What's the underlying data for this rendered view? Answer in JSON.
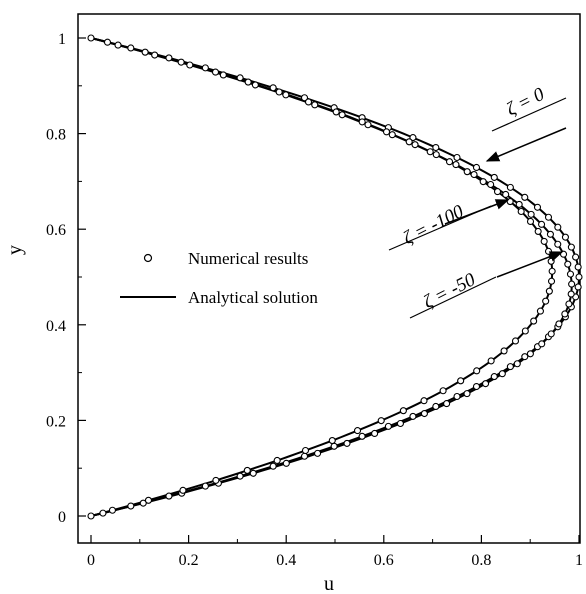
{
  "chart_data": {
    "type": "line",
    "title": "",
    "xlabel": "u",
    "ylabel": "y",
    "xlim": [
      0,
      1
    ],
    "ylim": [
      0,
      1
    ],
    "xticks": [
      "0",
      "0.2",
      "0.4",
      "0.6",
      "0.8",
      "1"
    ],
    "yticks": [
      "0",
      "0.2",
      "0.4",
      "0.6",
      "0.8",
      "1"
    ],
    "grid": false,
    "legend_position": "center-left",
    "legend": {
      "markers_label": "Numerical results",
      "line_label": "Analytical solution"
    },
    "series": [
      {
        "zeta": 0,
        "umax": 1.0,
        "ypeak": 0.5
      },
      {
        "zeta": -50,
        "umax": 0.985,
        "ypeak": 0.48
      },
      {
        "zeta": -100,
        "umax": 0.945,
        "ypeak": 0.51
      }
    ],
    "annotations": [
      {
        "text": "ζ = 0",
        "points_to": [
          0.82,
          0.735
        ]
      },
      {
        "text": "ζ = -100",
        "points_to": [
          0.855,
          0.645
        ]
      },
      {
        "text": "ζ = -50",
        "points_to": [
          0.955,
          0.52
        ]
      }
    ]
  }
}
